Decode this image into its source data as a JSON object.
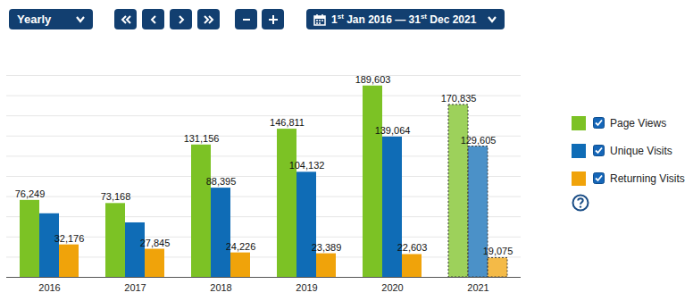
{
  "toolbar": {
    "period": "Yearly",
    "date_range": {
      "from": {
        "day": "1",
        "suffix": "st",
        "rest": "Jan 2016"
      },
      "separator": "—",
      "to": {
        "day": "31",
        "suffix": "st",
        "rest": "Dec 2021"
      }
    }
  },
  "chart_data": {
    "type": "bar",
    "categories": [
      "2016",
      "2017",
      "2018",
      "2019",
      "2020",
      "2021"
    ],
    "series": [
      {
        "name": "Page Views",
        "color": "#7cc225",
        "values": [
          76249,
          73168,
          131156,
          146811,
          189603,
          170835
        ],
        "value_labels": [
          "76,249",
          "73,168",
          "131,156",
          "146,811",
          "189,603",
          "170,835"
        ]
      },
      {
        "name": "Unique Visits",
        "color": "#0f6cb6",
        "values": [
          63000,
          54000,
          88395,
          104132,
          139064,
          129605
        ],
        "value_labels": [
          null,
          null,
          "88,395",
          "104,132",
          "139,064",
          "129,605"
        ]
      },
      {
        "name": "Returning Visits",
        "color": "#f0a30a",
        "values": [
          32176,
          27845,
          24226,
          23389,
          22603,
          19075
        ],
        "value_labels": [
          "32,176",
          "27,845",
          "24,226",
          "23,389",
          "22,603",
          "19,075"
        ]
      }
    ],
    "ylim": [
      0,
      200000
    ],
    "yticks": [
      0,
      20000,
      40000,
      60000,
      80000,
      100000,
      120000,
      140000,
      160000,
      180000,
      200000
    ],
    "grid": true,
    "data_labels": true,
    "tick_labels": "x",
    "legend": "right"
  }
}
